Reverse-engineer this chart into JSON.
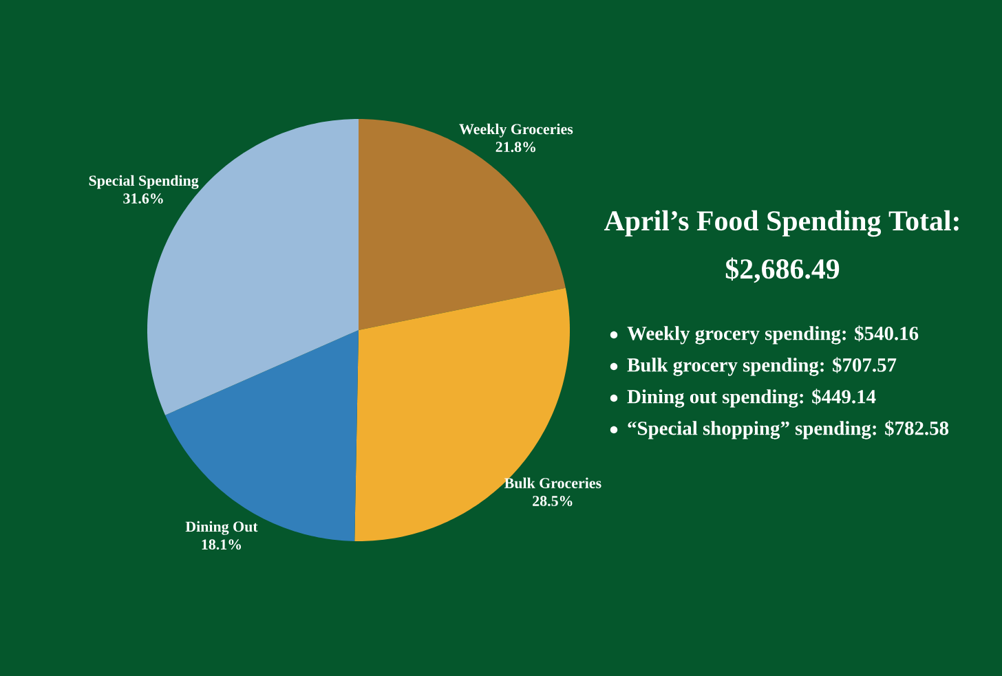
{
  "chart_data": {
    "type": "pie",
    "title": "April’s Food Spending Total:",
    "subtitle": "$2,686.49",
    "categories": [
      "Weekly Groceries",
      "Bulk Groceries",
      "Dining Out",
      "Special Spending"
    ],
    "values": [
      21.8,
      28.5,
      18.1,
      31.6
    ],
    "value_labels": [
      "21.8%",
      "28.5%",
      "18.1%",
      "31.6%"
    ],
    "colors": [
      "#b27a32",
      "#f1ae30",
      "#327fba",
      "#9abbdb"
    ],
    "annotations": [
      "Weekly grocery spending: $540.16",
      "Bulk grocery spending: $707.57",
      "Dining out spending: $449.14",
      "“Special shopping” spending: $782.58"
    ]
  }
}
